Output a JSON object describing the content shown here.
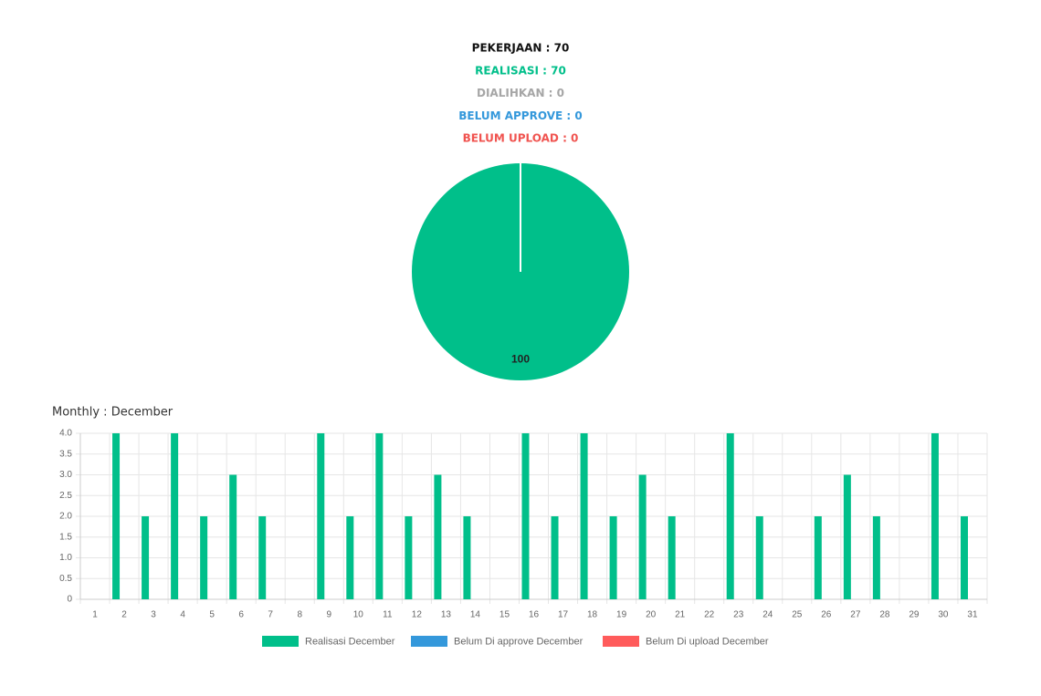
{
  "chart_data": [
    {
      "type": "pie",
      "summary": [
        {
          "text": "PEKERJAAN : 70",
          "color": "#111111"
        },
        {
          "text": "REALISASI : 70",
          "color": "#00bf8a"
        },
        {
          "text": "DIALIHKAN : 0",
          "color": "#a6a6a6"
        },
        {
          "text": "BELUM APPROVE : 0",
          "color": "#3498db"
        },
        {
          "text": "BELUM UPLOAD : 0",
          "color": "#f0534f"
        }
      ],
      "categories": [
        null
      ],
      "values": [
        100
      ],
      "colors": [
        "#00bf8a"
      ]
    },
    {
      "type": "bar",
      "title": "Monthly : December",
      "categories": [
        "1",
        "2",
        "3",
        "4",
        "5",
        "6",
        "7",
        "8",
        "9",
        "10",
        "11",
        "12",
        "13",
        "14",
        "15",
        "16",
        "17",
        "18",
        "19",
        "20",
        "21",
        "22",
        "23",
        "24",
        "25",
        "26",
        "27",
        "28",
        "29",
        "30",
        "31"
      ],
      "series": [
        {
          "name": "Realisasi December",
          "color": "#00bf8a",
          "values": [
            0,
            4,
            2,
            4,
            2,
            3,
            2,
            0,
            4,
            2,
            4,
            2,
            3,
            2,
            0,
            4,
            2,
            4,
            2,
            3,
            2,
            0,
            4,
            2,
            0,
            2,
            3,
            2,
            0,
            4,
            2
          ]
        },
        {
          "name": "Belum Di approve December",
          "color": "#3498db",
          "values": [
            0,
            0,
            0,
            0,
            0,
            0,
            0,
            0,
            0,
            0,
            0,
            0,
            0,
            0,
            0,
            0,
            0,
            0,
            0,
            0,
            0,
            0,
            0,
            0,
            0,
            0,
            0,
            0,
            0,
            0,
            0
          ]
        },
        {
          "name": "Belum Di upload December",
          "color": "#ff5b5b",
          "values": [
            0,
            0,
            0,
            0,
            0,
            0,
            0,
            0,
            0,
            0,
            0,
            0,
            0,
            0,
            0,
            0,
            0,
            0,
            0,
            0,
            0,
            0,
            0,
            0,
            0,
            0,
            0,
            0,
            0,
            0,
            0
          ]
        }
      ],
      "ylim": [
        0,
        4
      ],
      "yticks": [
        0,
        0.5,
        {
          "value": 1,
          "label": "1.0"
        },
        1.5,
        {
          "value": 2,
          "label": "2.0"
        },
        2.5,
        {
          "value": 3,
          "label": "3.0"
        },
        3.5,
        {
          "value": 4,
          "label": "4.0"
        }
      ],
      "grid": true
    }
  ]
}
